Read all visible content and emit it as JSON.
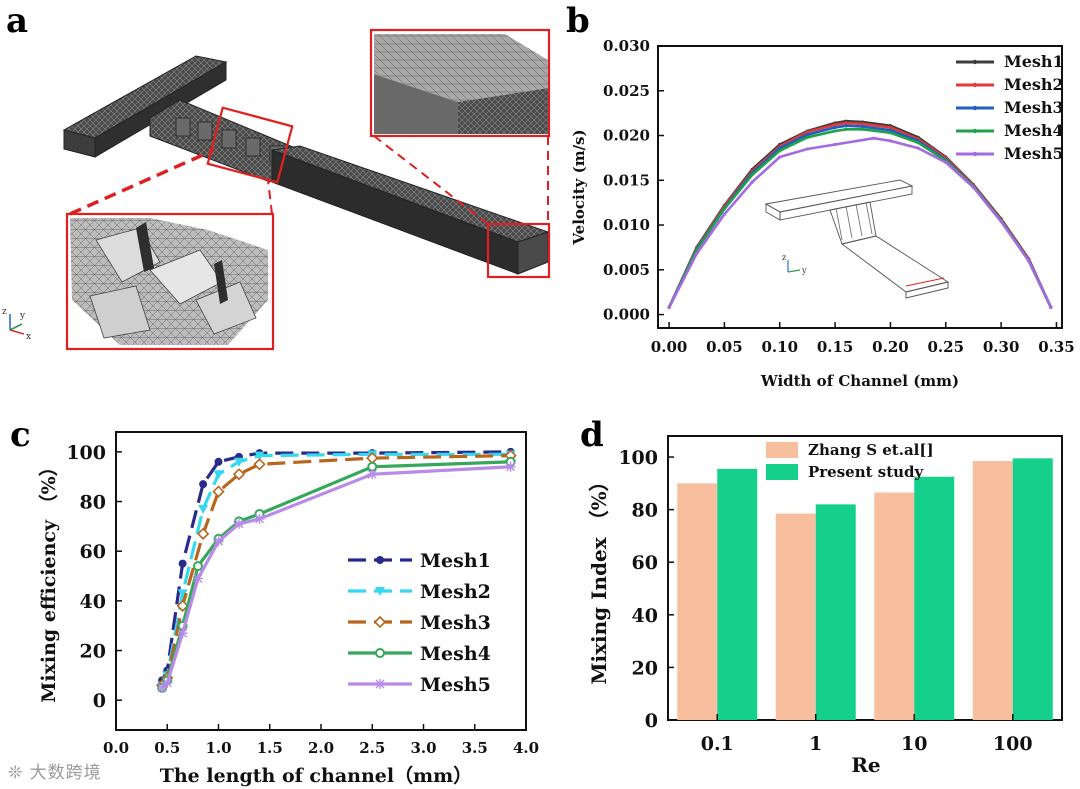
{
  "figure": {
    "panel_labels": [
      "a",
      "b",
      "c",
      "d"
    ],
    "watermark": "大数跨境"
  },
  "colors": {
    "red_box": "#e02020",
    "mesh_gray": "#3a3a3a",
    "mesh1_b": "#3c3c3c",
    "mesh2_b": "#e23a3a",
    "mesh3_b": "#1f5fc2",
    "mesh4_b": "#1fa04a",
    "mesh5_b": "#a46ae0",
    "mesh1_c": "#2a2a8c",
    "mesh2_c": "#36d8f0",
    "mesh3_c": "#b8651e",
    "mesh4_c": "#35a85a",
    "mesh5_c": "#b98be8",
    "zhang": "#f7bf9e",
    "present": "#14d08a"
  },
  "chart_data": [
    {
      "panel": "b",
      "type": "line",
      "title": "",
      "xlabel": "Width of Channel (mm)",
      "ylabel": "Velocity (m/s)",
      "xlim": [
        -0.01,
        0.355
      ],
      "ylim": [
        -0.0015,
        0.03
      ],
      "xticks": [
        0.0,
        0.05,
        0.1,
        0.15,
        0.2,
        0.25,
        0.3,
        0.35
      ],
      "xtick_labels": [
        "0.00",
        "0.05",
        "0.10",
        "0.15",
        "0.20",
        "0.25",
        "0.30",
        "0.35"
      ],
      "yticks": [
        0.0,
        0.005,
        0.01,
        0.015,
        0.02,
        0.025,
        0.03
      ],
      "ytick_labels": [
        "0.000",
        "0.005",
        "0.010",
        "0.015",
        "0.020",
        "0.025",
        "0.030"
      ],
      "legend_position": "top-right",
      "inset_axes": {
        "z": "z",
        "y": "y"
      },
      "series": [
        {
          "name": "Mesh1",
          "color_key": "mesh1_b",
          "x": [
            0.0,
            0.025,
            0.05,
            0.075,
            0.1,
            0.125,
            0.15,
            0.16,
            0.175,
            0.2,
            0.225,
            0.25,
            0.275,
            0.3,
            0.325,
            0.345
          ],
          "y": [
            0.0008,
            0.0075,
            0.0122,
            0.0162,
            0.019,
            0.0205,
            0.0214,
            0.0216,
            0.0215,
            0.0211,
            0.0198,
            0.0176,
            0.0145,
            0.0107,
            0.0062,
            0.0008
          ]
        },
        {
          "name": "Mesh2",
          "color_key": "mesh2_b",
          "x": [
            0.0,
            0.025,
            0.05,
            0.075,
            0.1,
            0.125,
            0.15,
            0.16,
            0.175,
            0.2,
            0.225,
            0.25,
            0.275,
            0.3,
            0.325,
            0.345
          ],
          "y": [
            0.0008,
            0.0074,
            0.0121,
            0.016,
            0.0188,
            0.0204,
            0.0212,
            0.0214,
            0.0213,
            0.0209,
            0.0196,
            0.0175,
            0.0144,
            0.0106,
            0.0061,
            0.0008
          ]
        },
        {
          "name": "Mesh3",
          "color_key": "mesh3_b",
          "x": [
            0.0,
            0.025,
            0.05,
            0.075,
            0.1,
            0.125,
            0.15,
            0.16,
            0.175,
            0.2,
            0.225,
            0.25,
            0.275,
            0.3,
            0.325,
            0.345
          ],
          "y": [
            0.0008,
            0.0073,
            0.0119,
            0.0158,
            0.0186,
            0.0201,
            0.0209,
            0.0211,
            0.021,
            0.0206,
            0.0194,
            0.0173,
            0.0143,
            0.0105,
            0.006,
            0.0008
          ]
        },
        {
          "name": "Mesh4",
          "color_key": "mesh4_b",
          "x": [
            0.0,
            0.025,
            0.05,
            0.075,
            0.1,
            0.125,
            0.15,
            0.16,
            0.175,
            0.2,
            0.225,
            0.25,
            0.275,
            0.3,
            0.325,
            0.345
          ],
          "y": [
            0.0008,
            0.0072,
            0.0118,
            0.0156,
            0.0183,
            0.0198,
            0.0205,
            0.0207,
            0.0207,
            0.0203,
            0.0192,
            0.0172,
            0.0143,
            0.0105,
            0.006,
            0.0008
          ]
        },
        {
          "name": "Mesh5",
          "color_key": "mesh5_b",
          "x": [
            0.0,
            0.025,
            0.05,
            0.075,
            0.1,
            0.125,
            0.15,
            0.185,
            0.2,
            0.225,
            0.25,
            0.275,
            0.3,
            0.325,
            0.345
          ],
          "y": [
            0.0008,
            0.0068,
            0.0112,
            0.0148,
            0.0176,
            0.0185,
            0.019,
            0.0197,
            0.0194,
            0.0186,
            0.017,
            0.0142,
            0.0104,
            0.006,
            0.0008
          ]
        }
      ]
    },
    {
      "panel": "c",
      "type": "line",
      "title": "",
      "xlabel": "The length of channel（mm）",
      "ylabel": "Mixing efficiency （%）",
      "xlim": [
        0.0,
        4.0
      ],
      "ylim": [
        -12,
        108
      ],
      "xticks": [
        0.0,
        0.5,
        1.0,
        1.5,
        2.0,
        2.5,
        3.0,
        3.5,
        4.0
      ],
      "xtick_labels": [
        "0.0",
        "0.5",
        "1.0",
        "1.5",
        "2.0",
        "2.5",
        "3.0",
        "3.5",
        "4.0"
      ],
      "yticks": [
        0,
        20,
        40,
        60,
        80,
        100
      ],
      "ytick_labels": [
        "0",
        "20",
        "40",
        "60",
        "80",
        "100"
      ],
      "legend_position": "center-right",
      "series": [
        {
          "name": "Mesh1",
          "color_key": "mesh1_c",
          "dash": "18 8",
          "marker": "circle",
          "x": [
            0.45,
            0.5,
            0.65,
            0.85,
            1.0,
            1.2,
            1.4,
            2.5,
            3.85
          ],
          "y": [
            8,
            12,
            55,
            87,
            96,
            98,
            99.5,
            99.5,
            100
          ]
        },
        {
          "name": "Mesh2",
          "color_key": "mesh2_c",
          "dash": "18 8",
          "marker": "tri-down",
          "x": [
            0.45,
            0.5,
            0.65,
            0.85,
            1.0,
            1.2,
            1.4,
            2.5,
            3.85
          ],
          "y": [
            6,
            10,
            43,
            77,
            91,
            96,
            98.5,
            99,
            99
          ]
        },
        {
          "name": "Mesh3",
          "color_key": "mesh3_c",
          "dash": "18 8",
          "marker": "diamond",
          "x": [
            0.45,
            0.5,
            0.65,
            0.85,
            1.0,
            1.2,
            1.4,
            2.5,
            3.85
          ],
          "y": [
            6,
            9,
            38,
            67,
            84,
            91,
            95,
            97.5,
            98.5
          ]
        },
        {
          "name": "Mesh4",
          "color_key": "mesh4_c",
          "dash": "",
          "marker": "circle-open",
          "x": [
            0.45,
            0.5,
            0.65,
            0.8,
            1.0,
            1.2,
            1.4,
            2.5,
            3.85
          ],
          "y": [
            5,
            8,
            30,
            54,
            65,
            72,
            75,
            94,
            96
          ]
        },
        {
          "name": "Mesh5",
          "color_key": "mesh5_c",
          "dash": "",
          "marker": "star",
          "x": [
            0.45,
            0.5,
            0.65,
            0.8,
            1.0,
            1.2,
            1.4,
            2.5,
            3.85
          ],
          "y": [
            5,
            7,
            27,
            49,
            64,
            71,
            73,
            91,
            94
          ]
        }
      ]
    },
    {
      "panel": "d",
      "type": "bar",
      "title": "",
      "xlabel": "Re",
      "ylabel": "Mixing Index （%）",
      "categories": [
        "0.1",
        "1",
        "10",
        "100"
      ],
      "ylim": [
        0,
        108
      ],
      "yticks": [
        0,
        20,
        40,
        60,
        80,
        100
      ],
      "ytick_labels": [
        "0",
        "20",
        "40",
        "60",
        "80",
        "100"
      ],
      "legend_position": "top-left",
      "series": [
        {
          "name": "Zhang S et.al[]",
          "color_key": "zhang",
          "values": [
            90,
            78.5,
            86.5,
            98.5
          ]
        },
        {
          "name": "Present study",
          "color_key": "present",
          "values": [
            95.5,
            82,
            92.5,
            99.5
          ]
        }
      ]
    }
  ]
}
